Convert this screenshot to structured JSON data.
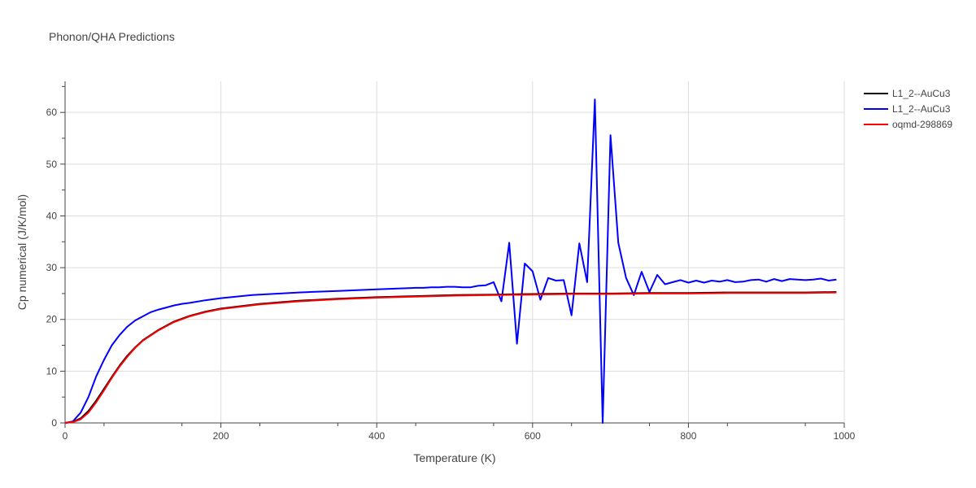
{
  "chart_data": {
    "type": "line",
    "title": "Phonon/QHA Predictions",
    "xlabel": "Temperature (K)",
    "ylabel": "Cp numerical (J/K/mol)",
    "xlim": [
      0,
      1000
    ],
    "ylim": [
      0,
      66
    ],
    "x_ticks": [
      0,
      200,
      400,
      600,
      800,
      1000
    ],
    "y_ticks": [
      0,
      10,
      20,
      30,
      40,
      50,
      60
    ],
    "grid": true,
    "legend_position": "top-right",
    "series": [
      {
        "name": "L1_2--AuCu3",
        "color": "#000000",
        "x": [
          0,
          10,
          20,
          30,
          40,
          50,
          60,
          70,
          80,
          90,
          100,
          120,
          140,
          160,
          180,
          200,
          250,
          300,
          350,
          400,
          450,
          500,
          550,
          600,
          650,
          700,
          750,
          800,
          850,
          900,
          950,
          990
        ],
        "y": [
          0,
          0.2,
          0.9,
          2.3,
          4.3,
          6.6,
          8.9,
          11.1,
          13.0,
          14.6,
          16.0,
          18.0,
          19.6,
          20.7,
          21.5,
          22.1,
          23.0,
          23.6,
          24.0,
          24.3,
          24.5,
          24.7,
          24.8,
          24.9,
          25.0,
          25.0,
          25.1,
          25.1,
          25.2,
          25.2,
          25.2,
          25.3
        ]
      },
      {
        "name": "L1_2--AuCu3",
        "color": "#0000ff",
        "x": [
          0,
          10,
          20,
          30,
          40,
          50,
          60,
          70,
          80,
          90,
          100,
          110,
          120,
          130,
          140,
          150,
          160,
          180,
          200,
          240,
          300,
          350,
          400,
          450,
          460,
          470,
          480,
          490,
          500,
          510,
          520,
          530,
          540,
          550,
          560,
          570,
          580,
          590,
          600,
          610,
          620,
          630,
          640,
          650,
          660,
          670,
          680,
          690,
          700,
          710,
          720,
          730,
          740,
          750,
          760,
          770,
          780,
          790,
          800,
          810,
          820,
          830,
          840,
          850,
          860,
          870,
          880,
          890,
          900,
          910,
          920,
          930,
          940,
          950,
          960,
          970,
          980,
          990
        ],
        "y": [
          0,
          0.3,
          2.0,
          5.0,
          9.0,
          12.2,
          15.0,
          17.0,
          18.6,
          19.8,
          20.6,
          21.4,
          21.9,
          22.3,
          22.7,
          23.0,
          23.2,
          23.7,
          24.1,
          24.7,
          25.2,
          25.5,
          25.8,
          26.1,
          26.1,
          26.2,
          26.2,
          26.3,
          26.3,
          26.2,
          26.2,
          26.5,
          26.6,
          27.2,
          23.5,
          34.8,
          15.3,
          30.8,
          29.3,
          23.8,
          28.0,
          27.5,
          27.6,
          20.8,
          34.7,
          27.2,
          62.5,
          0,
          55.6,
          34.8,
          28.0,
          24.7,
          29.2,
          25.3,
          28.6,
          26.8,
          27.2,
          27.6,
          27.1,
          27.5,
          27.1,
          27.5,
          27.3,
          27.6,
          27.2,
          27.3,
          27.6,
          27.7,
          27.3,
          27.8,
          27.4,
          27.8,
          27.7,
          27.6,
          27.7,
          27.9,
          27.5,
          27.7
        ]
      },
      {
        "name": "oqmd-298869",
        "color": "#ff0000",
        "x": [
          0,
          10,
          20,
          30,
          40,
          50,
          60,
          70,
          80,
          90,
          100,
          120,
          140,
          160,
          180,
          200,
          250,
          300,
          350,
          400,
          450,
          500,
          550,
          600,
          650,
          700,
          750,
          800,
          850,
          900,
          950,
          990
        ],
        "y": [
          0,
          0.15,
          0.7,
          2.0,
          4.0,
          6.3,
          8.7,
          10.9,
          12.8,
          14.5,
          15.9,
          17.9,
          19.5,
          20.6,
          21.4,
          22.0,
          22.9,
          23.5,
          23.9,
          24.2,
          24.4,
          24.6,
          24.7,
          24.8,
          24.9,
          24.9,
          25.0,
          25.0,
          25.1,
          25.1,
          25.1,
          25.2
        ]
      }
    ]
  }
}
